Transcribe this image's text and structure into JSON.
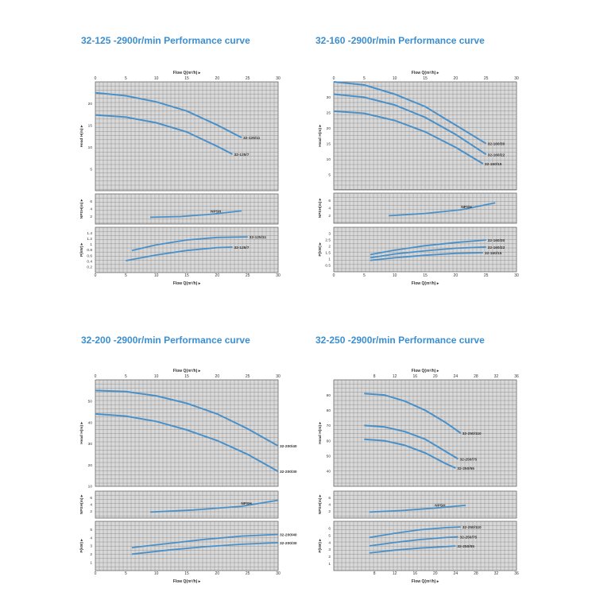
{
  "axis_labels": {
    "flow": "Flow Q(m³/h) ▸",
    "head": "Head H(m) ▸",
    "npsh": "NPSH(m) ▸",
    "power": "P(kW) ▸",
    "npsh_curve": "NPSH"
  },
  "colors": {
    "title": "#3b8fd0",
    "curve": "#4a90c8",
    "grid": "#777777",
    "band": "#d9d9d9"
  },
  "chart_data": [
    {
      "type": "line",
      "title": "32-125 -2900r/min Performance curve",
      "x_ticks": [
        0,
        5,
        10,
        15,
        20,
        25,
        30
      ],
      "xlim": [
        0,
        30
      ],
      "head": {
        "ylim": [
          0,
          25
        ],
        "ticks": [
          5,
          10,
          15,
          20
        ],
        "series": [
          {
            "name": "32-125/11",
            "x": [
              0,
              5,
              10,
              15,
              20,
              24
            ],
            "y": [
              22.5,
              21.8,
              20.4,
              18.3,
              15.1,
              12.2
            ]
          },
          {
            "name": "32-125/7",
            "x": [
              0,
              5,
              10,
              15,
              20,
              22.5
            ],
            "y": [
              17.4,
              16.9,
              15.6,
              13.5,
              10.2,
              8.4
            ]
          }
        ],
        "series_labels": [
          "32-125/11",
          "32-125/7"
        ]
      },
      "npsh": {
        "ylim": [
          0,
          8
        ],
        "ticks": [
          2,
          4,
          6
        ],
        "x": [
          9,
          14,
          19,
          24
        ],
        "y": [
          1.8,
          2.0,
          2.6,
          3.5
        ]
      },
      "power": {
        "ylim": [
          0,
          1.6
        ],
        "ticks": [
          0.2,
          0.4,
          0.6,
          0.8,
          1.0,
          1.2,
          1.4
        ],
        "series": [
          {
            "name": "32-125/11",
            "x": [
              6,
              10,
              15,
              20,
              25
            ],
            "y": [
              0.78,
              0.98,
              1.15,
              1.24,
              1.26
            ]
          },
          {
            "name": "32-125/7",
            "x": [
              5,
              10,
              15,
              20,
              22.5
            ],
            "y": [
              0.42,
              0.62,
              0.78,
              0.88,
              0.9
            ]
          }
        ],
        "series_labels": [
          "32-125/11",
          "32-125/7"
        ]
      }
    },
    {
      "type": "line",
      "title": "32-160 -2900r/min Performance curve",
      "x_ticks": [
        0,
        5,
        10,
        15,
        20,
        25,
        30
      ],
      "xlim": [
        0,
        30
      ],
      "head": {
        "ylim": [
          0,
          35
        ],
        "ticks": [
          5,
          10,
          15,
          20,
          25,
          30
        ],
        "series": [
          {
            "name": "32-160/30",
            "x": [
              0,
              5,
              10,
              15,
              20,
              25
            ],
            "y": [
              35,
              34,
              31,
              27,
              21,
              15
            ]
          },
          {
            "name": "32-160/22",
            "x": [
              0,
              5,
              10,
              15,
              20,
              25
            ],
            "y": [
              31,
              30,
              27.5,
              23.5,
              18,
              11.5
            ]
          },
          {
            "name": "32-160/15",
            "x": [
              0,
              5,
              10,
              15,
              20,
              24.5
            ],
            "y": [
              25.5,
              24.8,
              22.5,
              18.8,
              13.8,
              8.5
            ]
          }
        ],
        "series_labels": [
          "32-160/30",
          "32-160/22",
          "32-160/15"
        ]
      },
      "npsh": {
        "ylim": [
          0,
          8
        ],
        "ticks": [
          2,
          4,
          6
        ],
        "x": [
          9,
          15,
          21,
          26.5
        ],
        "y": [
          2.0,
          2.6,
          3.6,
          5.4
        ]
      },
      "power": {
        "ylim": [
          0,
          3.5
        ],
        "ticks": [
          0.5,
          1,
          1.5,
          2,
          2.5,
          3
        ],
        "series": [
          {
            "name": "32-160/30",
            "x": [
              6,
              10,
              15,
              20,
              25
            ],
            "y": [
              1.35,
              1.7,
              2.05,
              2.3,
              2.5
            ]
          },
          {
            "name": "32-160/22",
            "x": [
              6,
              10,
              15,
              20,
              25
            ],
            "y": [
              1.1,
              1.4,
              1.65,
              1.85,
              1.95
            ]
          },
          {
            "name": "32-160/15",
            "x": [
              6,
              10,
              15,
              20,
              24.5
            ],
            "y": [
              0.9,
              1.1,
              1.3,
              1.45,
              1.5
            ]
          }
        ],
        "series_labels": [
          "32-160/30",
          "32-160/22",
          "32-160/15"
        ]
      }
    },
    {
      "type": "line",
      "title": "32-200 -2900r/min Performance curve",
      "x_ticks": [
        0,
        5,
        10,
        15,
        20,
        25,
        30
      ],
      "xlim": [
        0,
        30
      ],
      "head": {
        "ylim": [
          10,
          60
        ],
        "ticks": [
          10,
          20,
          30,
          40,
          50
        ],
        "series": [
          {
            "name": "32-200/40",
            "x": [
              0,
              5,
              10,
              15,
              20,
              25,
              30
            ],
            "y": [
              55,
              54.5,
              52.5,
              49,
              44,
              37,
              29
            ]
          },
          {
            "name": "32-200/30",
            "x": [
              0,
              5,
              10,
              15,
              20,
              25,
              30
            ],
            "y": [
              44,
              43,
              40.5,
              36.5,
              31.5,
              25,
              17
            ]
          }
        ],
        "series_labels": [
          "32-200/40",
          "32-200/30"
        ]
      },
      "npsh": {
        "ylim": [
          0,
          8
        ],
        "ticks": [
          2,
          4,
          6
        ],
        "x": [
          9,
          16,
          24,
          30
        ],
        "y": [
          1.8,
          2.4,
          3.5,
          5.3
        ]
      },
      "power": {
        "ylim": [
          0,
          6
        ],
        "ticks": [
          1,
          2,
          3,
          4,
          5
        ],
        "series": [
          {
            "name": "32-200/40",
            "x": [
              6,
              12,
              18,
              24,
              30
            ],
            "y": [
              2.8,
              3.3,
              3.8,
              4.2,
              4.4
            ]
          },
          {
            "name": "32-200/30",
            "x": [
              6,
              12,
              18,
              24,
              30
            ],
            "y": [
              2.0,
              2.5,
              2.9,
              3.2,
              3.4
            ]
          }
        ],
        "series_labels": [
          "32-200/40",
          "32-200/30"
        ]
      }
    },
    {
      "type": "line",
      "title": "32-250 -2900r/min Performance curve",
      "x_ticks": [
        0,
        4,
        8,
        12,
        16,
        20,
        24,
        28,
        32,
        36
      ],
      "xlim": [
        0,
        36
      ],
      "x_tick_labels": [
        8,
        12,
        16,
        20,
        24,
        28,
        32,
        36
      ],
      "head": {
        "ylim": [
          30,
          100
        ],
        "ticks": [
          40,
          50,
          60,
          70,
          80,
          90
        ],
        "series": [
          {
            "name": "32-250/110",
            "x": [
              6,
              10,
              14,
              18,
              22,
              25
            ],
            "y": [
              91,
              90,
              86,
              80,
              72,
              65
            ]
          },
          {
            "name": "32-250/75",
            "x": [
              6,
              10,
              14,
              18,
              22,
              24.5
            ],
            "y": [
              70,
              69,
              66,
              61,
              53,
              48
            ]
          },
          {
            "name": "32-250/55",
            "x": [
              6,
              10,
              14,
              18,
              22,
              24
            ],
            "y": [
              61,
              60,
              57,
              52,
              45,
              42
            ]
          }
        ],
        "series_labels": [
          "32-250/110",
          "32-250/75",
          "32-250/55"
        ]
      },
      "npsh": {
        "ylim": [
          0,
          8
        ],
        "ticks": [
          2,
          4,
          6
        ],
        "x": [
          7,
          14,
          20,
          26
        ],
        "y": [
          1.8,
          2.3,
          3.0,
          3.8
        ]
      },
      "power": {
        "ylim": [
          0,
          7
        ],
        "ticks": [
          1,
          2,
          3,
          4,
          5,
          6
        ],
        "series": [
          {
            "name": "32-250/110",
            "x": [
              7,
              12,
              17,
              22,
              25
            ],
            "y": [
              4.7,
              5.3,
              5.8,
              6.1,
              6.2
            ]
          },
          {
            "name": "32-250/75",
            "x": [
              7,
              12,
              17,
              22,
              24.5
            ],
            "y": [
              3.5,
              4.0,
              4.4,
              4.7,
              4.8
            ]
          },
          {
            "name": "32-250/55",
            "x": [
              7,
              12,
              17,
              22,
              24
            ],
            "y": [
              2.5,
              2.9,
              3.2,
              3.4,
              3.5
            ]
          }
        ],
        "series_labels": [
          "32-250/110",
          "32-250/75",
          "32-250/55"
        ]
      }
    }
  ]
}
